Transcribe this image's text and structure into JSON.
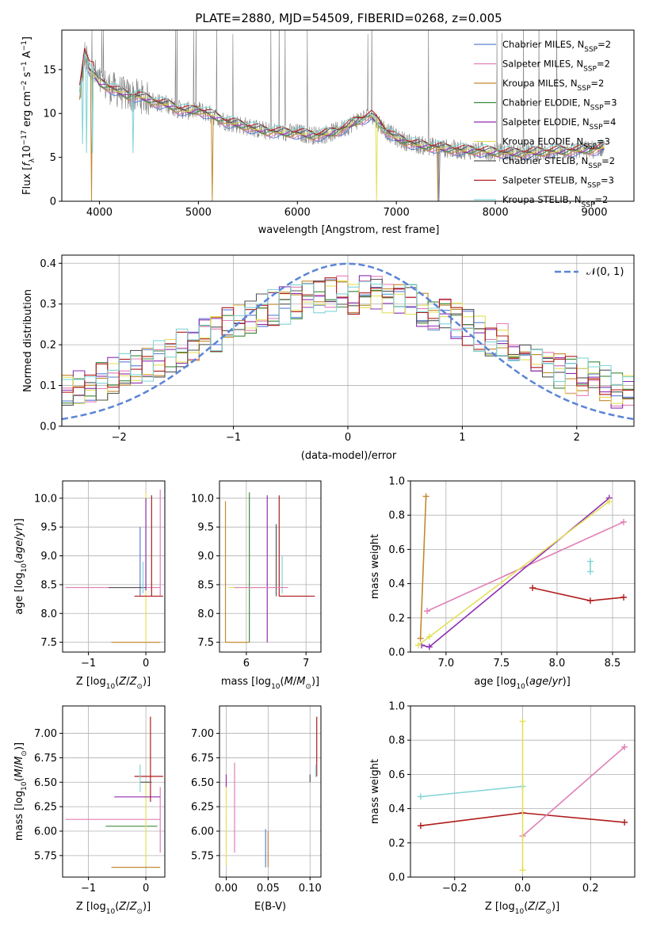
{
  "colors": {
    "Chabrier MILES": "#5b7fd6",
    "Salpeter MILES": "#e07fb6",
    "Kroupa MILES": "#c28a2e",
    "Chabrier ELODIE": "#3d8a3d",
    "Salpeter ELODIE": "#8e2fb0",
    "Kroupa ELODIE": "#e4e05a",
    "Chabrier STELIB": "#555555",
    "Salpeter STELIB": "#b01c1c",
    "Kroupa STELIB": "#82d4d6",
    "data": "#808080",
    "normal": "#5b85d6",
    "orange": "#e8762c",
    "lime": "#c6e07a"
  },
  "chart_data": [
    {
      "id": "spectrum",
      "type": "line",
      "title": "PLATE=2880, MJD=54509, FIBERID=0268, z=0.005",
      "xlabel": "wavelength [Angstrom, rest frame]",
      "ylabel": "Flux [f_λ10^-17 erg cm^-2 s^-1 A^-1]",
      "xlim": [
        3620,
        9400
      ],
      "ylim": [
        0,
        19.5
      ],
      "xticks": [
        4000,
        5000,
        6000,
        7000,
        8000,
        9000
      ],
      "yticks": [
        0,
        5,
        10,
        15
      ],
      "legend_position": "top-right",
      "legend": [
        "Chabrier MILES, N_SSP=2",
        "Salpeter MILES, N_SSP=2",
        "Kroupa MILES, N_SSP=2",
        "Chabrier ELODIE, N_SSP=3",
        "Salpeter ELODIE, N_SSP=4",
        "Kroupa ELODIE, N_SSP=3",
        "Chabrier STELIB, N_SSP=2",
        "Salpeter STELIB, N_SSP=3",
        "Kroupa STELIB, N_SSP=2"
      ],
      "continuum": {
        "x": [
          3800,
          3850,
          3900,
          3950,
          4000,
          4100,
          4200,
          4300,
          4400,
          4500,
          4600,
          4700,
          4800,
          4900,
          5000,
          5100,
          5200,
          5300,
          5400,
          5500,
          5600,
          5700,
          5800,
          5900,
          6000,
          6100,
          6200,
          6300,
          6400,
          6500,
          6600,
          6700,
          6750,
          6800,
          6900,
          7000,
          7100,
          7200,
          7300,
          7400,
          7500,
          7600,
          7700,
          7800,
          7900,
          8000,
          8200,
          8400,
          8600,
          8800,
          9000,
          9100
        ],
        "y": [
          12.0,
          16.5,
          15.0,
          14.5,
          13.5,
          13.0,
          12.5,
          12.0,
          12.0,
          11.6,
          11.2,
          11.0,
          10.5,
          10.3,
          10.4,
          10.0,
          9.5,
          9.0,
          8.8,
          8.5,
          8.2,
          8.0,
          7.9,
          7.8,
          7.8,
          7.6,
          7.5,
          7.7,
          8.0,
          8.5,
          9.2,
          9.6,
          9.8,
          9.2,
          8.0,
          7.2,
          6.8,
          6.5,
          6.3,
          6.2,
          6.0,
          5.9,
          5.8,
          5.8,
          5.7,
          5.6,
          5.5,
          5.6,
          5.7,
          5.8,
          5.9,
          6.2
        ]
      }
    },
    {
      "id": "residuals",
      "type": "line",
      "title": "",
      "xlabel": "(data-model)/error",
      "ylabel": "Normed distribution",
      "xlim": [
        -2.5,
        2.5
      ],
      "ylim": [
        0,
        0.42
      ],
      "xticks": [
        -2,
        -1,
        0,
        1,
        2
      ],
      "yticks": [
        0.0,
        0.1,
        0.2,
        0.3,
        0.4
      ],
      "legend_position": "top-right",
      "legend": [
        "𝒩(0, 1)"
      ],
      "normal": {
        "mu": 0,
        "sigma": 1
      }
    },
    {
      "id": "age_vs_Z",
      "type": "scatter",
      "xlabel": "Z [log10(Z/Z⊙)]",
      "ylabel": "age  [log10(age/yr)]",
      "xlim": [
        -1.45,
        0.33
      ],
      "ylim": [
        7.33,
        10.3
      ],
      "xticks": [
        -1,
        0
      ],
      "yticks": [
        7.5,
        8.0,
        8.5,
        9.0,
        9.5,
        10.0
      ],
      "segments": [
        {
          "model": "Salpeter MILES",
          "x0": -1.4,
          "x1": 0.25,
          "y0": 8.45,
          "y1": 8.45
        },
        {
          "model": "Salpeter MILES",
          "x0": 0.25,
          "x1": 0.25,
          "y0": 8.3,
          "y1": 10.15
        },
        {
          "model": "Kroupa MILES",
          "x0": -0.6,
          "x1": 0.25,
          "y0": 7.5,
          "y1": 7.5
        },
        {
          "model": "Kroupa ELODIE",
          "x0": 0.0,
          "x1": 0.0,
          "y0": 7.5,
          "y1": 10.1
        },
        {
          "model": "Chabrier MILES",
          "x0": -0.1,
          "x1": -0.1,
          "y0": 8.3,
          "y1": 9.5
        },
        {
          "model": "Chabrier STELIB",
          "x0": -0.65,
          "x1": 0.0,
          "y0": 8.45,
          "y1": 8.45
        },
        {
          "model": "Salpeter STELIB",
          "x0": 0.1,
          "x1": 0.1,
          "y0": 8.3,
          "y1": 10.05
        },
        {
          "model": "Salpeter STELIB",
          "x0": -0.2,
          "x1": 0.3,
          "y0": 8.3,
          "y1": 8.3
        },
        {
          "model": "Salpeter ELODIE",
          "x0": 0.0,
          "x1": 0.0,
          "y0": 8.4,
          "y1": 10.0
        },
        {
          "model": "Kroupa STELIB",
          "x0": -0.05,
          "x1": -0.05,
          "y0": 8.35,
          "y1": 8.9
        }
      ]
    },
    {
      "id": "age_vs_mass",
      "type": "scatter",
      "xlabel": "mass [log10(M/M⊙)]",
      "ylabel": "",
      "xlim": [
        5.55,
        7.25
      ],
      "ylim": [
        7.33,
        10.3
      ],
      "xticks": [
        5,
        6,
        7
      ],
      "yticks": [
        7.5,
        8.0,
        8.5,
        9.0,
        9.5,
        10.0
      ],
      "segments": [
        {
          "model": "Kroupa MILES",
          "x0": 5.65,
          "x1": 5.65,
          "y0": 7.5,
          "y1": 9.95
        },
        {
          "model": "Kroupa MILES",
          "x0": 5.65,
          "x1": 6.05,
          "y0": 7.5,
          "y1": 7.5
        },
        {
          "model": "Chabrier ELODIE",
          "x0": 6.05,
          "x1": 6.05,
          "y0": 7.5,
          "y1": 10.1
        },
        {
          "model": "Kroupa ELODIE",
          "x0": 5.7,
          "x1": 6.5,
          "y0": 8.45,
          "y1": 8.45
        },
        {
          "model": "Salpeter ELODIE",
          "x0": 6.35,
          "x1": 6.35,
          "y0": 7.5,
          "y1": 10.05
        },
        {
          "model": "Salpeter STELIB",
          "x0": 6.55,
          "x1": 6.55,
          "y0": 8.3,
          "y1": 10.05
        },
        {
          "model": "Salpeter STELIB",
          "x0": 6.55,
          "x1": 7.15,
          "y0": 8.3,
          "y1": 8.3
        },
        {
          "model": "Chabrier STELIB",
          "x0": 6.5,
          "x1": 6.5,
          "y0": 8.3,
          "y1": 9.55
        },
        {
          "model": "Kroupa STELIB",
          "x0": 6.6,
          "x1": 6.6,
          "y0": 8.35,
          "y1": 9.0
        },
        {
          "model": "Salpeter MILES",
          "x0": 5.8,
          "x1": 6.7,
          "y0": 8.45,
          "y1": 8.45
        }
      ]
    },
    {
      "id": "weight_vs_age",
      "type": "line",
      "xlabel": "age  [log10(age/yr)]",
      "ylabel": "mass weight",
      "xlim": [
        6.68,
        8.7
      ],
      "ylim": [
        0,
        1.0
      ],
      "xticks": [
        7.0,
        7.5,
        8.0,
        8.5
      ],
      "yticks": [
        0.0,
        0.2,
        0.4,
        0.6,
        0.8,
        1.0
      ],
      "series": [
        {
          "model": "Kroupa MILES",
          "x": [
            6.77,
            6.82
          ],
          "y": [
            0.08,
            0.91
          ]
        },
        {
          "model": "Salpeter MILES",
          "x": [
            6.83,
            8.6
          ],
          "y": [
            0.24,
            0.76
          ]
        },
        {
          "model": "Salpeter ELODIE",
          "x": [
            6.78,
            6.85,
            8.47
          ],
          "y": [
            0.04,
            0.03,
            0.9
          ]
        },
        {
          "model": "Kroupa ELODIE",
          "x": [
            6.75,
            6.85,
            8.47
          ],
          "y": [
            0.04,
            0.09,
            0.88
          ]
        },
        {
          "model": "Salpeter STELIB",
          "x": [
            7.78,
            8.3,
            8.6
          ],
          "y": [
            0.375,
            0.3,
            0.32
          ]
        },
        {
          "model": "Kroupa STELIB",
          "x": [
            8.3,
            8.3
          ],
          "y": [
            0.47,
            0.53
          ]
        }
      ]
    },
    {
      "id": "mass_vs_Z",
      "type": "scatter",
      "xlabel": "Z [log10(Z/Z⊙)]",
      "ylabel": "mass [log10(M/M⊙)]",
      "xlim": [
        -1.45,
        0.33
      ],
      "ylim": [
        5.53,
        7.28
      ],
      "xticks": [
        -1,
        0
      ],
      "yticks": [
        5.75,
        6.0,
        6.25,
        6.5,
        6.75,
        7.0
      ],
      "segments": [
        {
          "model": "Salpeter MILES",
          "x0": -1.4,
          "x1": 0.25,
          "y0": 6.12,
          "y1": 6.12
        },
        {
          "model": "Salpeter MILES",
          "x0": 0.25,
          "x1": 0.25,
          "y0": 5.78,
          "y1": 6.45
        },
        {
          "model": "Chabrier ELODIE",
          "x0": -0.7,
          "x1": 0.2,
          "y0": 6.05,
          "y1": 6.05
        },
        {
          "model": "Kroupa ELODIE",
          "x0": 0.0,
          "x1": 0.0,
          "y0": 5.65,
          "y1": 6.5
        },
        {
          "model": "Salpeter ELODIE",
          "x0": -0.55,
          "x1": 0.25,
          "y0": 6.35,
          "y1": 6.35
        },
        {
          "model": "Kroupa MILES",
          "x0": -0.6,
          "x1": 0.25,
          "y0": 5.63,
          "y1": 5.63
        },
        {
          "model": "Salpeter STELIB",
          "x0": -0.2,
          "x1": 0.3,
          "y0": 6.56,
          "y1": 6.56
        },
        {
          "model": "Salpeter STELIB",
          "x0": 0.08,
          "x1": 0.08,
          "y0": 6.3,
          "y1": 7.17
        },
        {
          "model": "Chabrier STELIB",
          "x0": -0.1,
          "x1": 0.1,
          "y0": 6.5,
          "y1": 6.5
        },
        {
          "model": "Kroupa STELIB",
          "x0": -0.1,
          "x1": -0.1,
          "y0": 6.4,
          "y1": 6.68
        }
      ]
    },
    {
      "id": "mass_vs_EBV",
      "type": "scatter",
      "xlabel": "E(B-V)",
      "ylabel": "",
      "xlim": [
        -0.008,
        0.113
      ],
      "ylim": [
        5.53,
        7.28
      ],
      "xticks": [
        0.0,
        0.05,
        0.1
      ],
      "yticks": [
        5.75,
        6.0,
        6.25,
        6.5,
        6.75,
        7.0
      ],
      "segments": [
        {
          "model": "Kroupa ELODIE",
          "x0": 0.0,
          "x1": 0.0,
          "y0": 5.65,
          "y1": 6.5
        },
        {
          "model": "Salpeter ELODIE",
          "x0": 0.0,
          "x1": 0.0,
          "y0": 6.45,
          "y1": 6.58
        },
        {
          "model": "Salpeter MILES",
          "x0": 0.01,
          "x1": 0.01,
          "y0": 5.78,
          "y1": 6.7
        },
        {
          "model": "Chabrier MILES",
          "x0": 0.047,
          "x1": 0.047,
          "y0": 5.63,
          "y1": 6.02
        },
        {
          "model": "Kroupa MILES",
          "x0": 0.05,
          "x1": 0.05,
          "y0": 5.63,
          "y1": 6.0
        },
        {
          "model": "Chabrier STELIB",
          "x0": 0.1,
          "x1": 0.1,
          "y0": 6.5,
          "y1": 6.58
        },
        {
          "model": "Salpeter STELIB",
          "x0": 0.108,
          "x1": 0.108,
          "y0": 6.56,
          "y1": 7.17
        },
        {
          "model": "Kroupa STELIB",
          "x0": 0.107,
          "x1": 0.107,
          "y0": 6.55,
          "y1": 6.68
        }
      ]
    },
    {
      "id": "weight_vs_Z",
      "type": "line",
      "xlabel": "Z [log10(Z/Z⊙)]",
      "ylabel": "mass weight",
      "xlim": [
        -0.33,
        0.33
      ],
      "ylim": [
        0,
        1.0
      ],
      "xticks": [
        -0.2,
        0.0,
        0.2
      ],
      "yticks": [
        0.0,
        0.2,
        0.4,
        0.6,
        0.8,
        1.0
      ],
      "series": [
        {
          "model": "Kroupa STELIB",
          "x": [
            -0.3,
            0.0
          ],
          "y": [
            0.47,
            0.53
          ]
        },
        {
          "model": "Salpeter STELIB",
          "x": [
            -0.3,
            0.0,
            0.3
          ],
          "y": [
            0.3,
            0.375,
            0.32
          ]
        },
        {
          "model": "Salpeter MILES",
          "x": [
            0.0,
            0.3
          ],
          "y": [
            0.24,
            0.76
          ]
        },
        {
          "model": "Kroupa ELODIE",
          "x": [
            0.0,
            0.0
          ],
          "y": [
            0.04,
            0.91
          ]
        }
      ]
    }
  ]
}
